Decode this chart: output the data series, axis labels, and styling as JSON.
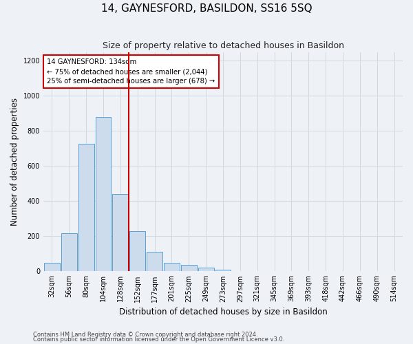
{
  "title": "14, GAYNESFORD, BASILDON, SS16 5SQ",
  "subtitle": "Size of property relative to detached houses in Basildon",
  "xlabel": "Distribution of detached houses by size in Basildon",
  "ylabel": "Number of detached properties",
  "footnote1": "Contains HM Land Registry data © Crown copyright and database right 2024.",
  "footnote2": "Contains public sector information licensed under the Open Government Licence v3.0.",
  "bar_labels": [
    "32sqm",
    "56sqm",
    "80sqm",
    "104sqm",
    "128sqm",
    "152sqm",
    "177sqm",
    "201sqm",
    "225sqm",
    "249sqm",
    "273sqm",
    "297sqm",
    "321sqm",
    "345sqm",
    "369sqm",
    "393sqm",
    "418sqm",
    "442sqm",
    "466sqm",
    "490sqm",
    "514sqm"
  ],
  "bar_values": [
    50,
    215,
    725,
    880,
    440,
    230,
    110,
    48,
    35,
    22,
    10,
    0,
    0,
    0,
    0,
    0,
    0,
    0,
    0,
    0,
    0
  ],
  "bar_color": "#ccdcec",
  "bar_edge_color": "#5a9fd4",
  "red_line_color": "#cc0000",
  "annotation_line1": "14 GAYNESFORD: 134sqm",
  "annotation_line2": "← 75% of detached houses are smaller (2,044)",
  "annotation_line3": "25% of semi-detached houses are larger (678) →",
  "annotation_box_color": "#ffffff",
  "annotation_box_edge": "#cc0000",
  "ylim": [
    0,
    1250
  ],
  "yticks": [
    0,
    200,
    400,
    600,
    800,
    1000,
    1200
  ],
  "grid_color": "#d0d8e0",
  "background_color": "#eef2f7",
  "title_fontsize": 11,
  "subtitle_fontsize": 9,
  "axis_label_fontsize": 8.5,
  "tick_fontsize": 7,
  "footnote_fontsize": 6
}
